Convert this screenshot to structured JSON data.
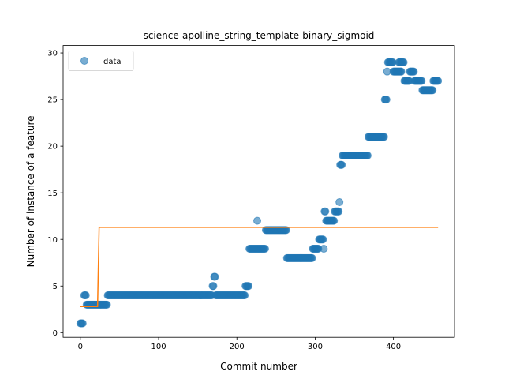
{
  "chart_data": {
    "type": "scatter",
    "title": "science-apolline_string_template-binary_sigmoid",
    "xlabel": "Commit number",
    "ylabel": "Number of instance of a feature",
    "xlim": [
      -22,
      478
    ],
    "ylim": [
      -0.5,
      30.8
    ],
    "xticks": [
      0,
      100,
      200,
      300,
      400
    ],
    "yticks": [
      0,
      5,
      10,
      15,
      20,
      25,
      30
    ],
    "grid": false,
    "legend": {
      "placement": "upper-left",
      "entries": [
        "data"
      ]
    },
    "colors": {
      "data": "#1f77b4",
      "fit": "#ff7f0e"
    },
    "series": [
      {
        "name": "data",
        "kind": "points",
        "runs": [
          [
            0,
            3,
            1
          ],
          [
            5,
            7,
            4
          ],
          [
            8,
            34,
            3
          ],
          [
            35,
            168,
            4
          ],
          [
            169,
            170,
            5
          ],
          [
            171,
            172,
            6
          ],
          [
            173,
            210,
            4
          ],
          [
            211,
            215,
            5
          ],
          [
            216,
            236,
            9
          ],
          [
            226,
            226,
            12
          ],
          [
            237,
            263,
            11
          ],
          [
            264,
            296,
            8
          ],
          [
            297,
            304,
            9
          ],
          [
            305,
            310,
            10
          ],
          [
            311,
            311,
            9
          ],
          [
            312,
            313,
            13
          ],
          [
            314,
            324,
            12
          ],
          [
            325,
            330,
            13
          ],
          [
            331,
            331,
            14
          ],
          [
            332,
            334,
            18
          ],
          [
            335,
            367,
            19
          ],
          [
            368,
            388,
            21
          ],
          [
            389,
            391,
            25
          ],
          [
            392,
            392,
            28
          ],
          [
            393,
            399,
            29
          ],
          [
            400,
            410,
            28
          ],
          [
            407,
            413,
            29
          ],
          [
            414,
            420,
            27
          ],
          [
            421,
            426,
            28
          ],
          [
            427,
            436,
            27
          ],
          [
            437,
            450,
            26
          ],
          [
            451,
            457,
            27
          ]
        ]
      },
      {
        "name": "",
        "kind": "line",
        "x": [
          0,
          22,
          24,
          457
        ],
        "y": [
          2.8,
          2.8,
          11.3,
          11.3
        ]
      }
    ]
  }
}
